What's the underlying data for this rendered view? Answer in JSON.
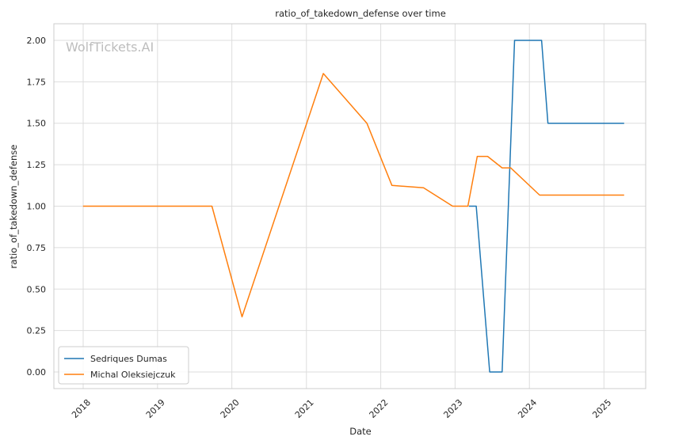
{
  "chart_data": {
    "type": "line",
    "title": "ratio_of_takedown_defense over time",
    "xlabel": "Date",
    "ylabel": "ratio_of_takedown_defense",
    "watermark": "WolfTickets.AI",
    "xlim": [
      "2017-08-10",
      "2025-07-25"
    ],
    "ylim": [
      -0.1,
      2.1
    ],
    "x_ticks": [
      "2018-01-01",
      "2019-01-01",
      "2020-01-01",
      "2021-01-01",
      "2022-01-01",
      "2023-01-01",
      "2024-01-01",
      "2025-01-01"
    ],
    "x_tick_labels": [
      "2018",
      "2019",
      "2020",
      "2021",
      "2022",
      "2023",
      "2024",
      "2025"
    ],
    "y_ticks": [
      0.0,
      0.25,
      0.5,
      0.75,
      1.0,
      1.25,
      1.5,
      1.75,
      2.0
    ],
    "y_tick_labels": [
      "0.00",
      "0.25",
      "0.50",
      "0.75",
      "1.00",
      "1.25",
      "1.50",
      "1.75",
      "2.00"
    ],
    "grid": true,
    "legend_position": "lower-left",
    "series": [
      {
        "name": "Sedriques Dumas",
        "color": "#1f77b4",
        "points": [
          [
            "2023-03-10",
            1.0
          ],
          [
            "2023-04-15",
            1.0
          ],
          [
            "2023-06-20",
            0.0
          ],
          [
            "2023-08-20",
            0.0
          ],
          [
            "2023-10-20",
            2.0
          ],
          [
            "2024-03-01",
            2.0
          ],
          [
            "2024-04-01",
            1.5
          ],
          [
            "2025-04-10",
            1.5
          ]
        ]
      },
      {
        "name": "Michal Oleksiejczuk",
        "color": "#ff7f0e",
        "points": [
          [
            "2017-12-31",
            1.0
          ],
          [
            "2019-09-25",
            1.0
          ],
          [
            "2020-02-20",
            0.333
          ],
          [
            "2021-03-25",
            1.8
          ],
          [
            "2021-10-25",
            1.5
          ],
          [
            "2022-02-25",
            1.125
          ],
          [
            "2022-07-30",
            1.111
          ],
          [
            "2022-12-20",
            1.0
          ],
          [
            "2023-03-05",
            1.0
          ],
          [
            "2023-04-20",
            1.3
          ],
          [
            "2023-06-10",
            1.3
          ],
          [
            "2023-08-20",
            1.231
          ],
          [
            "2023-10-01",
            1.231
          ],
          [
            "2024-02-20",
            1.067
          ],
          [
            "2025-04-10",
            1.067
          ]
        ]
      }
    ]
  }
}
